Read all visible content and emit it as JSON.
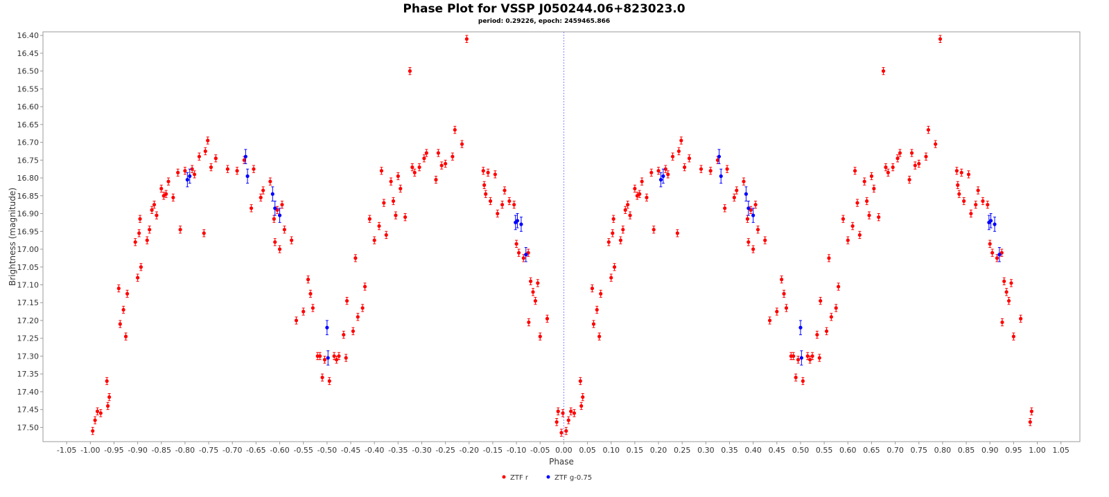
{
  "chart_data": {
    "type": "scatter",
    "title": "Phase Plot for VSSP J050244.06+823023.0",
    "subtitle": "period: 0.29226, epoch: 2459465.866",
    "x_label": "Phase",
    "y_label": "Brightness (magnitude)",
    "xlim": [
      -1.1,
      1.09
    ],
    "ylim": [
      16.39,
      17.54
    ],
    "y_inverted": true,
    "zero_line": true,
    "grid": false,
    "legend": "bottom",
    "xticks": [
      -1.05,
      {
        "value": -1,
        "label": "-1.00"
      },
      -0.95,
      {
        "value": -0.9,
        "label": "-0.90"
      },
      -0.85,
      {
        "value": -0.8,
        "label": "-0.80"
      },
      -0.75,
      {
        "value": -0.7,
        "label": "-0.70"
      },
      -0.65,
      {
        "value": -0.6,
        "label": "-0.60"
      },
      -0.55,
      {
        "value": -0.5,
        "label": "-0.50"
      },
      -0.45,
      {
        "value": -0.4,
        "label": "-0.40"
      },
      -0.35,
      {
        "value": -0.3,
        "label": "-0.30"
      },
      -0.25,
      {
        "value": -0.2,
        "label": "-0.20"
      },
      -0.15,
      {
        "value": -0.1,
        "label": "-0.10"
      },
      -0.05,
      {
        "value": 0,
        "label": "0.00"
      },
      0.05,
      {
        "value": 0.1,
        "label": "0.10"
      },
      0.15,
      {
        "value": 0.2,
        "label": "0.20"
      },
      0.25,
      {
        "value": 0.3,
        "label": "0.30"
      },
      0.35,
      {
        "value": 0.4,
        "label": "0.40"
      },
      0.45,
      {
        "value": 0.5,
        "label": "0.50"
      },
      0.55,
      {
        "value": 0.6,
        "label": "0.60"
      },
      0.65,
      {
        "value": 0.7,
        "label": "0.70"
      },
      0.75,
      {
        "value": 0.8,
        "label": "0.80"
      },
      0.85,
      {
        "value": 0.9,
        "label": "0.90"
      },
      0.95,
      {
        "value": 1,
        "label": "1.00"
      },
      1.05
    ],
    "yticks": [
      {
        "value": 16.4,
        "label": "16.40"
      },
      16.45,
      {
        "value": 16.5,
        "label": "16.50"
      },
      16.55,
      {
        "value": 16.6,
        "label": "16.60"
      },
      16.65,
      {
        "value": 16.7,
        "label": "16.70"
      },
      16.75,
      {
        "value": 16.8,
        "label": "16.80"
      },
      16.85,
      {
        "value": 16.9,
        "label": "16.90"
      },
      16.95,
      {
        "value": 17,
        "label": "17.00"
      },
      17.05,
      {
        "value": 17.1,
        "label": "17.10"
      },
      17.15,
      {
        "value": 17.2,
        "label": "17.20"
      },
      17.25,
      {
        "value": 17.3,
        "label": "17.30"
      },
      17.35,
      {
        "value": 17.4,
        "label": "17.40"
      },
      17.45,
      {
        "value": 17.5,
        "label": "17.50"
      }
    ],
    "series": [
      {
        "name": "ZTF r",
        "color": "#ff0000",
        "error": 0.01,
        "x": [
          -0.995,
          -0.99,
          -0.985,
          -0.978,
          -0.965,
          -0.963,
          -0.96,
          -0.94,
          -0.937,
          -0.93,
          -0.925,
          -0.922,
          -0.905,
          -0.9,
          -0.897,
          -0.895,
          -0.893,
          -0.88,
          -0.875,
          -0.87,
          -0.865,
          -0.86,
          -0.85,
          -0.845,
          -0.84,
          -0.835,
          -0.825,
          -0.815,
          -0.81,
          -0.8,
          -0.785,
          -0.78,
          -0.77,
          -0.76,
          -0.757,
          -0.752,
          -0.745,
          -0.735,
          -0.71,
          -0.69,
          -0.675,
          -0.66,
          -0.655,
          -0.64,
          -0.635,
          -0.62,
          -0.612,
          -0.61,
          -0.605,
          -0.6,
          -0.595,
          -0.59,
          -0.575,
          -0.565,
          -0.55,
          -0.54,
          -0.535,
          -0.53,
          -0.52,
          -0.515,
          -0.51,
          -0.505,
          -0.495,
          -0.485,
          -0.48,
          -0.475,
          -0.465,
          -0.46,
          -0.458,
          -0.445,
          -0.44,
          -0.435,
          -0.425,
          -0.42,
          -0.41,
          -0.4,
          -0.39,
          -0.385,
          -0.38,
          -0.375,
          -0.365,
          -0.36,
          -0.355,
          -0.35,
          -0.345,
          -0.335,
          -0.325,
          -0.32,
          -0.315,
          -0.305,
          -0.295,
          -0.29,
          -0.27,
          -0.265,
          -0.258,
          -0.25,
          -0.235,
          -0.23,
          -0.215,
          -0.205,
          -0.17,
          -0.168,
          -0.165,
          -0.16,
          -0.155,
          -0.145,
          -0.14,
          -0.13,
          -0.125,
          -0.115,
          -0.105,
          -0.1,
          -0.095,
          -0.085,
          -0.075,
          -0.07,
          -0.065,
          -0.06,
          -0.055,
          -0.05,
          -0.074,
          -0.035,
          -0.015,
          -0.012,
          -0.005,
          -0.002,
          0.005,
          0.01,
          0.015,
          0.022,
          0.035,
          0.037,
          0.04,
          0.06,
          0.063,
          0.07,
          0.075,
          0.078,
          0.095,
          0.1,
          0.103,
          0.105,
          0.107,
          0.12,
          0.125,
          0.13,
          0.135,
          0.14,
          0.15,
          0.155,
          0.16,
          0.165,
          0.175,
          0.185,
          0.19,
          0.2,
          0.215,
          0.22,
          0.23,
          0.24,
          0.243,
          0.248,
          0.255,
          0.265,
          0.29,
          0.31,
          0.325,
          0.34,
          0.345,
          0.36,
          0.365,
          0.38,
          0.388,
          0.39,
          0.395,
          0.4,
          0.405,
          0.41,
          0.425,
          0.435,
          0.45,
          0.46,
          0.465,
          0.47,
          0.48,
          0.485,
          0.49,
          0.495,
          0.505,
          0.515,
          0.52,
          0.525,
          0.535,
          0.54,
          0.542,
          0.555,
          0.56,
          0.565,
          0.575,
          0.58,
          0.59,
          0.6,
          0.61,
          0.615,
          0.62,
          0.625,
          0.635,
          0.64,
          0.645,
          0.65,
          0.655,
          0.665,
          0.675,
          0.68,
          0.685,
          0.695,
          0.705,
          0.71,
          0.73,
          0.735,
          0.742,
          0.75,
          0.765,
          0.77,
          0.785,
          0.795,
          0.83,
          0.832,
          0.835,
          0.84,
          0.845,
          0.855,
          0.86,
          0.87,
          0.875,
          0.885,
          0.895,
          0.9,
          0.905,
          0.915,
          0.925,
          0.93,
          0.935,
          0.94,
          0.945,
          0.95,
          0.926,
          0.965,
          0.985,
          0.988
        ],
        "values": [
          17.51,
          17.48,
          17.455,
          17.46,
          17.37,
          17.44,
          17.415,
          17.11,
          17.21,
          17.17,
          17.245,
          17.125,
          16.98,
          17.08,
          16.955,
          16.915,
          17.05,
          16.975,
          16.945,
          16.89,
          16.875,
          16.905,
          16.83,
          16.85,
          16.845,
          16.81,
          16.855,
          16.785,
          16.945,
          16.78,
          16.775,
          16.79,
          16.74,
          16.955,
          16.725,
          16.695,
          16.77,
          16.745,
          16.775,
          16.78,
          16.75,
          16.885,
          16.775,
          16.855,
          16.835,
          16.81,
          16.915,
          16.98,
          16.89,
          17.0,
          16.875,
          16.945,
          16.975,
          17.2,
          17.175,
          17.085,
          17.125,
          17.165,
          17.3,
          17.3,
          17.36,
          17.31,
          17.37,
          17.3,
          17.31,
          17.3,
          17.24,
          17.305,
          17.145,
          17.23,
          17.025,
          17.19,
          17.165,
          17.105,
          16.915,
          16.975,
          16.935,
          16.78,
          16.87,
          16.96,
          16.81,
          16.865,
          16.905,
          16.795,
          16.83,
          16.91,
          16.5,
          16.77,
          16.785,
          16.77,
          16.745,
          16.73,
          16.805,
          16.73,
          16.765,
          16.76,
          16.74,
          16.665,
          16.705,
          16.41,
          16.78,
          16.82,
          16.845,
          16.785,
          16.865,
          16.79,
          16.9,
          16.875,
          16.835,
          16.865,
          16.875,
          16.985,
          17.01,
          17.025,
          17.01,
          17.09,
          17.12,
          17.145,
          17.095,
          17.245,
          17.205,
          17.195,
          17.485,
          17.455,
          17.515,
          17.46,
          17.51,
          17.48,
          17.455,
          17.46,
          17.37,
          17.44,
          17.415,
          17.11,
          17.21,
          17.17,
          17.245,
          17.125,
          16.98,
          17.08,
          16.955,
          16.915,
          17.05,
          16.975,
          16.945,
          16.89,
          16.875,
          16.905,
          16.83,
          16.85,
          16.845,
          16.81,
          16.855,
          16.785,
          16.945,
          16.78,
          16.775,
          16.79,
          16.74,
          16.955,
          16.725,
          16.695,
          16.77,
          16.745,
          16.775,
          16.78,
          16.75,
          16.885,
          16.775,
          16.855,
          16.835,
          16.81,
          16.915,
          16.98,
          16.89,
          17.0,
          16.875,
          16.945,
          16.975,
          17.2,
          17.175,
          17.085,
          17.125,
          17.165,
          17.3,
          17.3,
          17.36,
          17.31,
          17.37,
          17.3,
          17.31,
          17.3,
          17.24,
          17.305,
          17.145,
          17.23,
          17.025,
          17.19,
          17.165,
          17.105,
          16.915,
          16.975,
          16.935,
          16.78,
          16.87,
          16.96,
          16.81,
          16.865,
          16.905,
          16.795,
          16.83,
          16.91,
          16.5,
          16.77,
          16.785,
          16.77,
          16.745,
          16.73,
          16.805,
          16.73,
          16.765,
          16.76,
          16.74,
          16.665,
          16.705,
          16.41,
          16.78,
          16.82,
          16.845,
          16.785,
          16.865,
          16.79,
          16.9,
          16.875,
          16.835,
          16.865,
          16.875,
          16.985,
          17.01,
          17.025,
          17.01,
          17.09,
          17.12,
          17.145,
          17.095,
          17.245,
          17.205,
          17.195,
          17.485,
          17.455
        ]
      },
      {
        "name": "ZTF g-0.75",
        "color": "#0000ff",
        "error": 0.02,
        "x": [
          -0.795,
          -0.79,
          -0.672,
          -0.668,
          -0.615,
          -0.61,
          -0.6,
          -0.5,
          -0.498,
          -0.102,
          -0.098,
          -0.09,
          -0.08,
          0.205,
          0.21,
          0.328,
          0.332,
          0.385,
          0.39,
          0.4,
          0.5,
          0.502,
          0.898,
          0.902,
          0.91,
          0.92
        ],
        "values": [
          16.805,
          16.795,
          16.74,
          16.795,
          16.845,
          16.885,
          16.905,
          17.22,
          17.305,
          16.925,
          16.92,
          16.93,
          17.015,
          16.805,
          16.795,
          16.74,
          16.795,
          16.845,
          16.885,
          16.905,
          17.22,
          17.305,
          16.925,
          16.92,
          16.93,
          17.015
        ]
      }
    ]
  }
}
